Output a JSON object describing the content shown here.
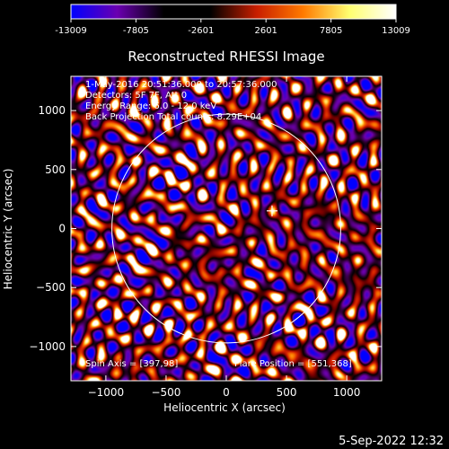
{
  "colorbar": {
    "ticks": [
      "-13009",
      "-7805",
      "-2601",
      "2601",
      "7805",
      "13009"
    ],
    "colors": [
      "#0000ff",
      "#6a00b0",
      "#000000",
      "#000000",
      "#c81e00",
      "#ff7a00",
      "#ffff70",
      "#ffffff"
    ]
  },
  "chart_data": {
    "type": "heatmap",
    "title": "Reconstructed RHESSI Image",
    "xlabel": "Heliocentric X (arcsec)",
    "ylabel": "Heliocentric Y (arcsec)",
    "xlim": [
      -1290,
      1290
    ],
    "ylim": [
      -1290,
      1290
    ],
    "xticks": [
      -1000,
      -500,
      0,
      500,
      1000
    ],
    "yticks": [
      -1000,
      -500,
      0,
      500,
      1000
    ],
    "xtick_labels": [
      "−1000",
      "−500",
      "0",
      "500",
      "1000"
    ],
    "ytick_labels": [
      "−1000",
      "−500",
      "0",
      "500",
      "1000"
    ],
    "value_range": [
      -13009,
      13009
    ],
    "solar_limb_radius": 950,
    "center_marker": [
      380,
      150
    ],
    "annotations": [
      "1-May-2016 20:51:36.000 to 20:57:36.000",
      "Detectors: 5F 7F, Att 0",
      "Energy Range: 6.0 - 12.0 keV",
      "Back Projection    Total counts: 8.29E+04"
    ],
    "spin_axis": "Spin Axis = [397,98]",
    "flare_position": "Flare Position = [551,368]"
  },
  "timestamp": "5-Sep-2022 12:32"
}
